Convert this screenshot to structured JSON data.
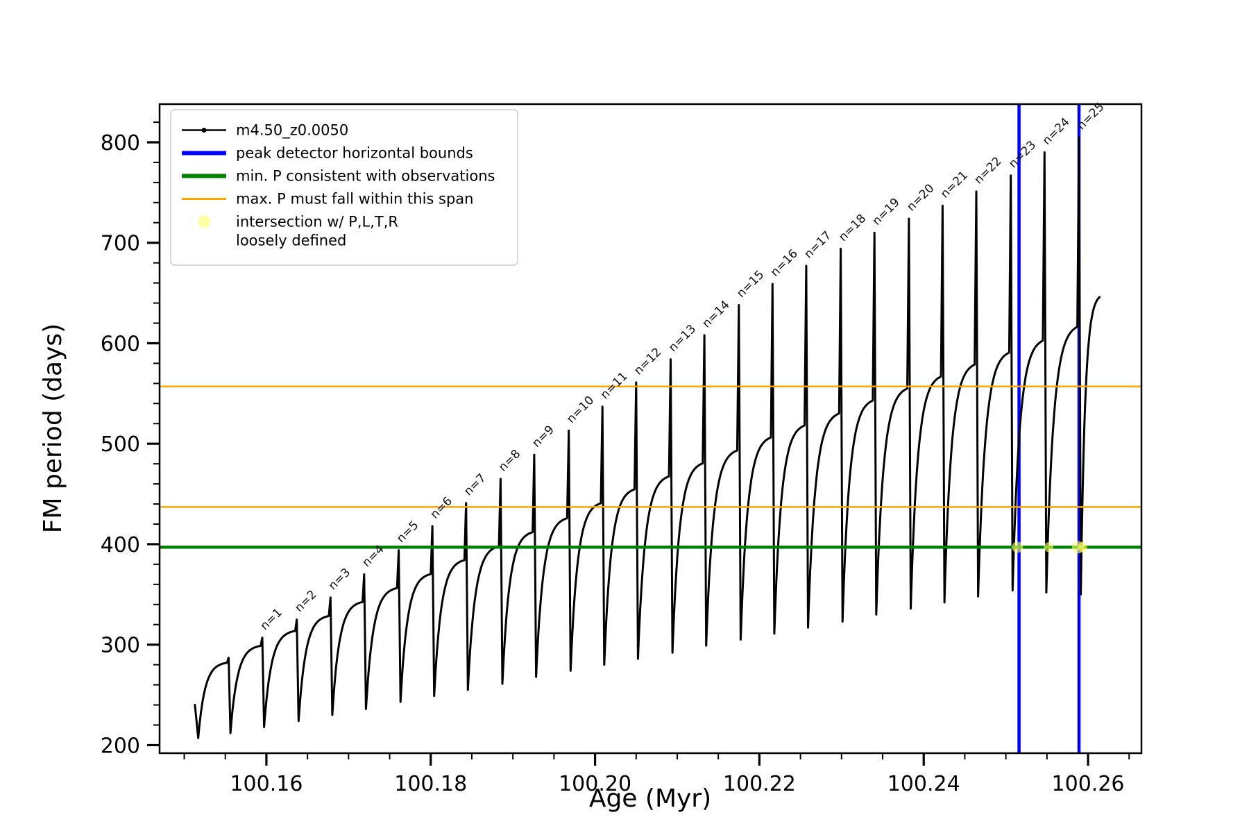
{
  "chart_data": {
    "type": "line",
    "title": "",
    "xlabel": "Age (Myr)",
    "ylabel": "FM period (days)",
    "xlim": [
      100.147,
      100.2665
    ],
    "ylim": [
      192,
      838
    ],
    "x_ticks": [
      100.16,
      100.18,
      100.2,
      100.22,
      100.24,
      100.26
    ],
    "x_tick_labels": [
      "100.16",
      "100.18",
      "100.20",
      "100.22",
      "100.24",
      "100.26"
    ],
    "x_minor_step": 0.005,
    "y_ticks": [
      200,
      300,
      400,
      500,
      600,
      700,
      800
    ],
    "y_minor_step": 20,
    "grid": false,
    "legend_position": "upper left",
    "series_name": "m4.50_z0.0050",
    "series_color": "#000000",
    "hlines": [
      {
        "y": 397,
        "color": "#008000",
        "width": 4.5,
        "label": "min. P consistent with observations"
      },
      {
        "y": 437,
        "color": "#ffa500",
        "width": 2.5,
        "label": "max. P must fall within this span"
      },
      {
        "y": 557,
        "color": "#ffa500",
        "width": 2.5,
        "label": "max. P must fall within this span"
      }
    ],
    "vlines": [
      {
        "x": 100.2516,
        "color": "#0000ff",
        "width": 4.5,
        "label": "peak detector horizontal bounds"
      },
      {
        "x": 100.2589,
        "color": "#0000ff",
        "width": 4.5,
        "label": "peak detector horizontal bounds"
      }
    ],
    "intersection_markers": {
      "label": "intersection w/ P,L,T,R\nloosely defined",
      "color": "#ffff66",
      "opacity": 0.6,
      "points": [
        {
          "x": 100.2514,
          "y": 397,
          "r": 8
        },
        {
          "x": 100.2552,
          "y": 397,
          "r": 7
        },
        {
          "x": 100.2588,
          "y": 397,
          "r": 9
        },
        {
          "x": 100.2593,
          "y": 397,
          "r": 7
        }
      ]
    },
    "pre_segment": {
      "x_start": 100.1513,
      "v_start": 240,
      "dip": 207
    },
    "cycles": [
      {
        "n": 0,
        "label": "",
        "spike_x": 100.1554,
        "start_min": 207,
        "plateau": 283,
        "peak": 287
      },
      {
        "n": 1,
        "label": "n=1",
        "spike_x": 100.1595,
        "start_min": 212,
        "plateau": 300,
        "peak": 307
      },
      {
        "n": 2,
        "label": "n=2",
        "spike_x": 100.1637,
        "start_min": 218,
        "plateau": 315,
        "peak": 325
      },
      {
        "n": 3,
        "label": "n=3",
        "spike_x": 100.1678,
        "start_min": 224,
        "plateau": 330,
        "peak": 347
      },
      {
        "n": 4,
        "label": "n=4",
        "spike_x": 100.1719,
        "start_min": 230,
        "plateau": 344,
        "peak": 370
      },
      {
        "n": 5,
        "label": "n=5",
        "spike_x": 100.1761,
        "start_min": 236,
        "plateau": 358,
        "peak": 394
      },
      {
        "n": 6,
        "label": "n=6",
        "spike_x": 100.1802,
        "start_min": 243,
        "plateau": 372,
        "peak": 418
      },
      {
        "n": 7,
        "label": "n=7",
        "spike_x": 100.1843,
        "start_min": 249,
        "plateau": 386,
        "peak": 441
      },
      {
        "n": 8,
        "label": "n=8",
        "spike_x": 100.1885,
        "start_min": 255,
        "plateau": 400,
        "peak": 465
      },
      {
        "n": 9,
        "label": "n=9",
        "spike_x": 100.1926,
        "start_min": 261,
        "plateau": 414,
        "peak": 489
      },
      {
        "n": 10,
        "label": "n=10",
        "spike_x": 100.1968,
        "start_min": 268,
        "plateau": 428,
        "peak": 513
      },
      {
        "n": 11,
        "label": "n=11",
        "spike_x": 100.2009,
        "start_min": 274,
        "plateau": 443,
        "peak": 537
      },
      {
        "n": 12,
        "label": "n=12",
        "spike_x": 100.205,
        "start_min": 280,
        "plateau": 457,
        "peak": 561
      },
      {
        "n": 13,
        "label": "n=13",
        "spike_x": 100.2092,
        "start_min": 286,
        "plateau": 470,
        "peak": 584
      },
      {
        "n": 14,
        "label": "n=14",
        "spike_x": 100.2133,
        "start_min": 292,
        "plateau": 483,
        "peak": 608
      },
      {
        "n": 15,
        "label": "n=15",
        "spike_x": 100.2175,
        "start_min": 299,
        "plateau": 496,
        "peak": 638
      },
      {
        "n": 16,
        "label": "n=16",
        "spike_x": 100.2216,
        "start_min": 305,
        "plateau": 509,
        "peak": 659
      },
      {
        "n": 17,
        "label": "n=17",
        "spike_x": 100.2257,
        "start_min": 311,
        "plateau": 521,
        "peak": 677
      },
      {
        "n": 18,
        "label": "n=18",
        "spike_x": 100.2299,
        "start_min": 317,
        "plateau": 533,
        "peak": 694
      },
      {
        "n": 19,
        "label": "n=19",
        "spike_x": 100.234,
        "start_min": 323,
        "plateau": 546,
        "peak": 710
      },
      {
        "n": 20,
        "label": "n=20",
        "spike_x": 100.2382,
        "start_min": 330,
        "plateau": 558,
        "peak": 724
      },
      {
        "n": 21,
        "label": "n=21",
        "spike_x": 100.2423,
        "start_min": 336,
        "plateau": 570,
        "peak": 737
      },
      {
        "n": 22,
        "label": "n=22",
        "spike_x": 100.2464,
        "start_min": 342,
        "plateau": 582,
        "peak": 751
      },
      {
        "n": 23,
        "label": "n=23",
        "spike_x": 100.2506,
        "start_min": 348,
        "plateau": 594,
        "peak": 767
      },
      {
        "n": 24,
        "label": "n=24",
        "spike_x": 100.2547,
        "start_min": 354,
        "plateau": 606,
        "peak": 790
      },
      {
        "n": 25,
        "label": "n=25",
        "spike_x": 100.2589,
        "start_min": 352,
        "plateau": 620,
        "peak": 805
      },
      {
        "n": 26,
        "label": "",
        "spike_x": 100.2616,
        "start_min": 350,
        "plateau": 650,
        "peak": null
      }
    ]
  },
  "legend": {
    "entries": [
      {
        "type": "line-marker",
        "color": "#000000",
        "width": 2.5,
        "label": "m4.50_z0.0050"
      },
      {
        "type": "line",
        "color": "#0000ff",
        "width": 6,
        "label": "peak detector horizontal bounds"
      },
      {
        "type": "line",
        "color": "#008000",
        "width": 6,
        "label": "min. P consistent with observations"
      },
      {
        "type": "line",
        "color": "#ffa500",
        "width": 3,
        "label": "max. P must fall within this span"
      },
      {
        "type": "marker",
        "color": "#ffff66",
        "width": 0,
        "label": "intersection w/ P,L,T,R\nloosely defined"
      }
    ]
  }
}
